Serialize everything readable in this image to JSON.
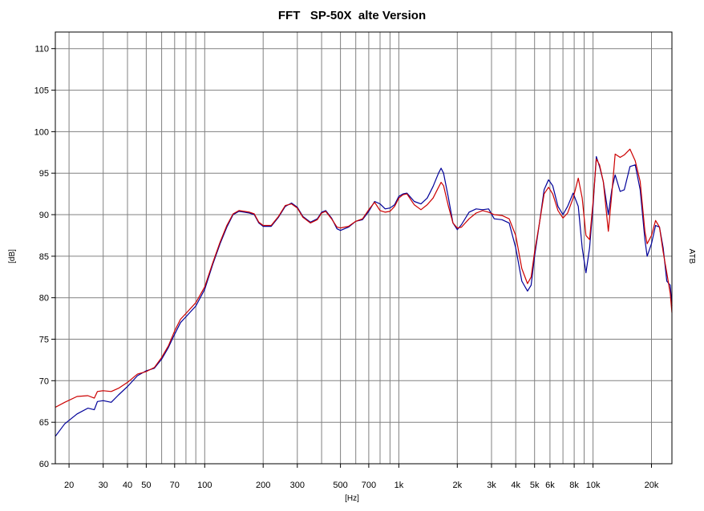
{
  "chart_data": {
    "type": "line",
    "title": "FFT   SP-50X  alte Version",
    "xlabel": "[Hz]",
    "ylabel": "[dB]",
    "right_label": "ATB",
    "x_scale": "log",
    "xlim": [
      17,
      25500
    ],
    "ylim": [
      60,
      112
    ],
    "grid": true,
    "x_tick_values": [
      20,
      30,
      40,
      50,
      70,
      100,
      200,
      300,
      500,
      700,
      1000,
      2000,
      3000,
      4000,
      5000,
      6000,
      8000,
      10000,
      20000
    ],
    "x_tick_labels": [
      "20",
      "30",
      "40",
      "50",
      "70",
      "100",
      "200",
      "300",
      "500",
      "700",
      "1k",
      "2k",
      "3k",
      "4k",
      "5k",
      "6k",
      "8k",
      "10k",
      "20k"
    ],
    "y_ticks": [
      60,
      65,
      70,
      75,
      80,
      85,
      90,
      95,
      100,
      105,
      110
    ],
    "colors": {
      "blue": "#000099",
      "red": "#cc0000",
      "grid": "#808080"
    },
    "series": [
      {
        "color": "#000099",
        "points": [
          [
            17,
            63.3
          ],
          [
            19,
            64.8
          ],
          [
            22,
            66.0
          ],
          [
            25,
            66.7
          ],
          [
            27,
            66.5
          ],
          [
            28,
            67.5
          ],
          [
            30,
            67.6
          ],
          [
            33,
            67.4
          ],
          [
            36,
            68.3
          ],
          [
            40,
            69.3
          ],
          [
            45,
            70.6
          ],
          [
            50,
            71.2
          ],
          [
            55,
            71.5
          ],
          [
            60,
            72.6
          ],
          [
            65,
            74.0
          ],
          [
            70,
            75.6
          ],
          [
            75,
            77.0
          ],
          [
            80,
            77.7
          ],
          [
            90,
            79.0
          ],
          [
            100,
            81.0
          ],
          [
            110,
            84.0
          ],
          [
            120,
            86.5
          ],
          [
            130,
            88.5
          ],
          [
            140,
            90.0
          ],
          [
            150,
            90.4
          ],
          [
            160,
            90.3
          ],
          [
            170,
            90.2
          ],
          [
            180,
            90.0
          ],
          [
            190,
            89.0
          ],
          [
            200,
            88.6
          ],
          [
            220,
            88.6
          ],
          [
            240,
            89.7
          ],
          [
            260,
            91.0
          ],
          [
            280,
            91.4
          ],
          [
            300,
            90.9
          ],
          [
            320,
            89.8
          ],
          [
            350,
            89.1
          ],
          [
            380,
            89.5
          ],
          [
            400,
            90.3
          ],
          [
            420,
            90.5
          ],
          [
            450,
            89.6
          ],
          [
            480,
            88.3
          ],
          [
            500,
            88.1
          ],
          [
            550,
            88.5
          ],
          [
            600,
            89.2
          ],
          [
            650,
            89.4
          ],
          [
            700,
            90.4
          ],
          [
            750,
            91.6
          ],
          [
            800,
            91.3
          ],
          [
            850,
            90.7
          ],
          [
            900,
            90.8
          ],
          [
            950,
            91.2
          ],
          [
            1000,
            92.2
          ],
          [
            1050,
            92.5
          ],
          [
            1100,
            92.6
          ],
          [
            1200,
            91.6
          ],
          [
            1300,
            91.3
          ],
          [
            1400,
            92.0
          ],
          [
            1500,
            93.4
          ],
          [
            1600,
            95.0
          ],
          [
            1650,
            95.6
          ],
          [
            1700,
            95.0
          ],
          [
            1800,
            92.0
          ],
          [
            1900,
            89.0
          ],
          [
            2000,
            88.2
          ],
          [
            2100,
            88.8
          ],
          [
            2300,
            90.3
          ],
          [
            2500,
            90.7
          ],
          [
            2700,
            90.6
          ],
          [
            2900,
            90.7
          ],
          [
            3100,
            89.5
          ],
          [
            3400,
            89.4
          ],
          [
            3700,
            89.0
          ],
          [
            4000,
            86.0
          ],
          [
            4300,
            82.0
          ],
          [
            4600,
            80.8
          ],
          [
            4800,
            81.5
          ],
          [
            5000,
            85.0
          ],
          [
            5300,
            89.0
          ],
          [
            5600,
            93.0
          ],
          [
            5900,
            94.2
          ],
          [
            6200,
            93.5
          ],
          [
            6600,
            91.0
          ],
          [
            7000,
            90.0
          ],
          [
            7400,
            91.0
          ],
          [
            7900,
            92.6
          ],
          [
            8400,
            91.0
          ],
          [
            8800,
            86.0
          ],
          [
            9200,
            83.0
          ],
          [
            9600,
            86.0
          ],
          [
            10000,
            91.0
          ],
          [
            10400,
            97.0
          ],
          [
            10800,
            95.8
          ],
          [
            11300,
            94.0
          ],
          [
            12000,
            90.0
          ],
          [
            12500,
            93.0
          ],
          [
            13000,
            94.8
          ],
          [
            13800,
            92.8
          ],
          [
            14500,
            93.0
          ],
          [
            15500,
            95.8
          ],
          [
            16500,
            96.0
          ],
          [
            17500,
            93.0
          ],
          [
            18500,
            87.0
          ],
          [
            19000,
            85.0
          ],
          [
            20000,
            86.5
          ],
          [
            21000,
            88.7
          ],
          [
            22000,
            88.5
          ],
          [
            23000,
            86.0
          ],
          [
            24000,
            82.0
          ],
          [
            25000,
            81.5
          ],
          [
            25500,
            79.0
          ]
        ]
      },
      {
        "color": "#cc0000",
        "points": [
          [
            17,
            66.8
          ],
          [
            19,
            67.4
          ],
          [
            22,
            68.1
          ],
          [
            25,
            68.2
          ],
          [
            27,
            67.9
          ],
          [
            28,
            68.7
          ],
          [
            30,
            68.8
          ],
          [
            33,
            68.7
          ],
          [
            36,
            69.1
          ],
          [
            40,
            69.8
          ],
          [
            45,
            70.8
          ],
          [
            50,
            71.1
          ],
          [
            55,
            71.6
          ],
          [
            60,
            72.8
          ],
          [
            65,
            74.2
          ],
          [
            70,
            76.0
          ],
          [
            75,
            77.4
          ],
          [
            80,
            78.1
          ],
          [
            90,
            79.4
          ],
          [
            100,
            81.3
          ],
          [
            110,
            84.2
          ],
          [
            120,
            86.7
          ],
          [
            130,
            88.7
          ],
          [
            140,
            90.1
          ],
          [
            150,
            90.5
          ],
          [
            160,
            90.4
          ],
          [
            170,
            90.3
          ],
          [
            180,
            90.1
          ],
          [
            190,
            89.1
          ],
          [
            200,
            88.7
          ],
          [
            220,
            88.7
          ],
          [
            240,
            89.8
          ],
          [
            260,
            91.1
          ],
          [
            280,
            91.3
          ],
          [
            300,
            90.8
          ],
          [
            320,
            89.7
          ],
          [
            350,
            89.0
          ],
          [
            380,
            89.4
          ],
          [
            400,
            90.2
          ],
          [
            420,
            90.4
          ],
          [
            450,
            89.5
          ],
          [
            480,
            88.5
          ],
          [
            500,
            88.4
          ],
          [
            550,
            88.6
          ],
          [
            600,
            89.2
          ],
          [
            650,
            89.5
          ],
          [
            700,
            90.6
          ],
          [
            750,
            91.5
          ],
          [
            800,
            90.5
          ],
          [
            850,
            90.3
          ],
          [
            900,
            90.4
          ],
          [
            950,
            91.0
          ],
          [
            1000,
            92.0
          ],
          [
            1050,
            92.4
          ],
          [
            1100,
            92.5
          ],
          [
            1200,
            91.2
          ],
          [
            1300,
            90.6
          ],
          [
            1400,
            91.2
          ],
          [
            1500,
            92.0
          ],
          [
            1600,
            93.3
          ],
          [
            1650,
            93.9
          ],
          [
            1700,
            93.5
          ],
          [
            1800,
            91.0
          ],
          [
            1900,
            89.0
          ],
          [
            2000,
            88.4
          ],
          [
            2100,
            88.5
          ],
          [
            2300,
            89.5
          ],
          [
            2500,
            90.2
          ],
          [
            2700,
            90.5
          ],
          [
            2900,
            90.3
          ],
          [
            3100,
            90.0
          ],
          [
            3400,
            89.9
          ],
          [
            3700,
            89.5
          ],
          [
            4000,
            87.5
          ],
          [
            4300,
            83.5
          ],
          [
            4600,
            81.7
          ],
          [
            4800,
            82.5
          ],
          [
            5000,
            85.5
          ],
          [
            5300,
            89.0
          ],
          [
            5600,
            92.5
          ],
          [
            5900,
            93.3
          ],
          [
            6200,
            92.5
          ],
          [
            6600,
            90.5
          ],
          [
            7000,
            89.6
          ],
          [
            7400,
            90.2
          ],
          [
            7900,
            92.0
          ],
          [
            8400,
            94.4
          ],
          [
            8800,
            92.0
          ],
          [
            9200,
            87.5
          ],
          [
            9600,
            87.0
          ],
          [
            10000,
            91.5
          ],
          [
            10400,
            96.7
          ],
          [
            10800,
            96.0
          ],
          [
            11300,
            94.0
          ],
          [
            12000,
            88.0
          ],
          [
            12500,
            92.5
          ],
          [
            13000,
            97.3
          ],
          [
            13800,
            96.9
          ],
          [
            14500,
            97.2
          ],
          [
            15500,
            97.9
          ],
          [
            16500,
            96.5
          ],
          [
            17500,
            94.0
          ],
          [
            18500,
            88.0
          ],
          [
            19000,
            86.5
          ],
          [
            20000,
            87.5
          ],
          [
            21000,
            89.3
          ],
          [
            22000,
            88.5
          ],
          [
            23000,
            85.5
          ],
          [
            24000,
            83.0
          ],
          [
            25000,
            80.5
          ],
          [
            25500,
            78.2
          ]
        ]
      }
    ]
  }
}
